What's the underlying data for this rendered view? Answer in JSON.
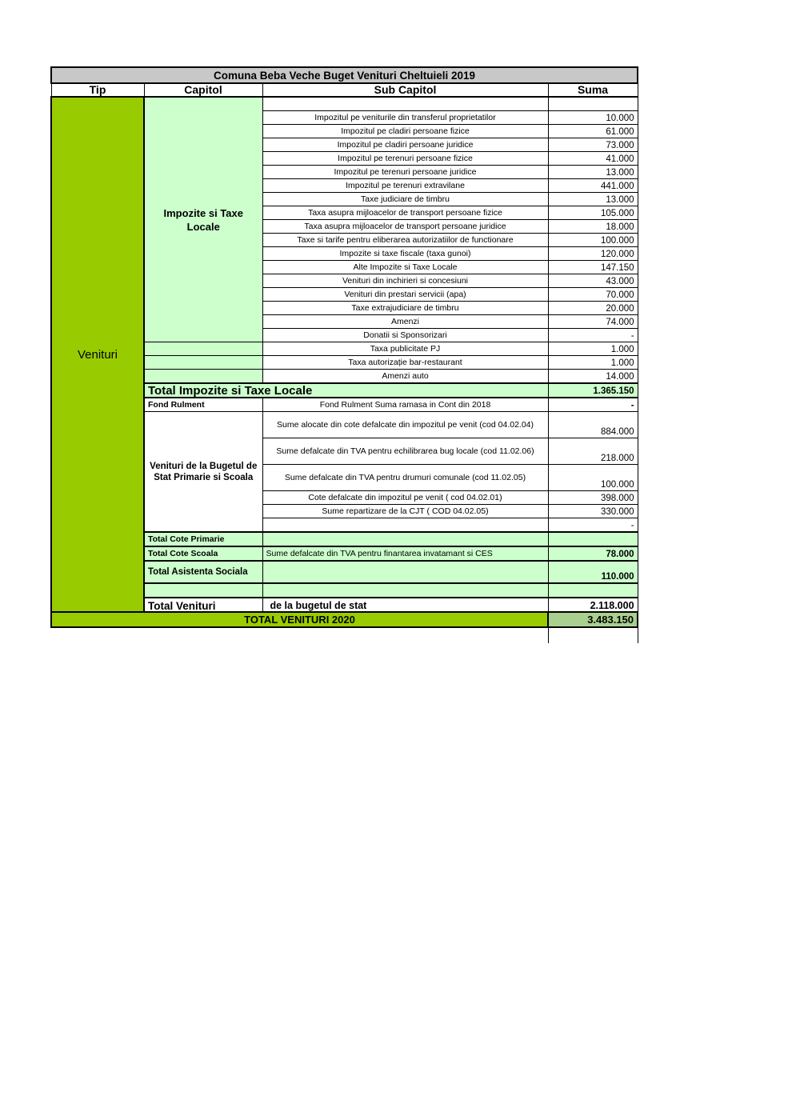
{
  "title": "Comuna Beba Veche  Buget Venituri Cheltuieli 2019",
  "headers": {
    "tip": "Tip",
    "capitol": "Capitol",
    "sub": "Sub Capitol",
    "suma": "Suma"
  },
  "tip": "Venituri",
  "capitol_impozite": "Impozite si Taxe Locale",
  "impozite_items": [
    {
      "name": "Impozitul pe veniturile din transferul proprietatilor",
      "value": "10.000"
    },
    {
      "name": "Impozitul pe cladiri persoane fizice",
      "value": "61.000"
    },
    {
      "name": "Impozitul pe cladiri persoane juridice",
      "value": "73.000"
    },
    {
      "name": "Impozitul pe terenuri persoane fizice",
      "value": "41.000"
    },
    {
      "name": "Impozitul pe terenuri persoane juridice",
      "value": "13.000"
    },
    {
      "name": "Impozitul pe terenuri extravilane",
      "value": "441.000"
    },
    {
      "name": "Taxe judiciare de timbru",
      "value": "13.000"
    },
    {
      "name": "Taxa asupra mijloacelor de transport persoane fizice",
      "value": "105.000"
    },
    {
      "name": "Taxa asupra mijloacelor de transport persoane juridice",
      "value": "18.000"
    },
    {
      "name": "Taxe si tarife pentru eliberarea autorizatiilor de functionare",
      "value": "100.000"
    },
    {
      "name": "Impozite si taxe fiscale (taxa gunoi)",
      "value": "120.000"
    },
    {
      "name": "Alte Impozite si Taxe Locale",
      "value": "147.150"
    },
    {
      "name": "Venituri din inchirieri si concesiuni",
      "value": "43.000"
    },
    {
      "name": "Venituri din prestari servicii (apa)",
      "value": "70.000"
    },
    {
      "name": "Taxe extrajudiciare de timbru",
      "value": "20.000"
    },
    {
      "name": "Amenzi",
      "value": "74.000"
    },
    {
      "name": "Donatii si Sponsorizari",
      "value": "-"
    }
  ],
  "extra_items": [
    {
      "name": "Taxa publicitate PJ",
      "value": "1.000"
    },
    {
      "name": "Taxa autorizație bar-restaurant",
      "value": "1.000"
    },
    {
      "name": "Amenzi auto",
      "value": "14.000"
    }
  ],
  "total_impozite": {
    "label": "Total Impozite si Taxe Locale",
    "value": "1.365.150"
  },
  "fond": {
    "label": "Fond Rulment",
    "sub": "Fond Rulment Suma ramasa in Cont din 2018",
    "value": "-"
  },
  "capitol_stat": "Venituri de la Bugetul de Stat Primarie si Scoala",
  "stat_items": [
    {
      "name": "Sume alocate din cote defalcate din impozitul pe venit (cod 04.02.04)",
      "value": "884.000"
    },
    {
      "name": "Sume defalcate din TVA pentru echilibrarea bug  locale (cod 11.02.06)",
      "value": "218.000"
    },
    {
      "name": "Sume defalcate din TVA pentru drumuri comunale (cod 11.02.05)",
      "value": "100.000"
    },
    {
      "name": "Cote defalcate din impozitul pe venit  ( cod 04.02.01)",
      "value": "398.000"
    },
    {
      "name": "Sume repartizare de la CJT ( COD 04.02.05)",
      "value": "330.000"
    },
    {
      "name": "",
      "value": "-"
    }
  ],
  "total_primarie": {
    "label": "Total Cote Primarie"
  },
  "total_scoala": {
    "label": "Total Cote Scoala",
    "sub": "Sume defalcate din TVA pentru finantarea invatamant  si CES",
    "value": "78.000"
  },
  "total_asistenta": {
    "label": "Total Asistenta Sociala",
    "value": "110.000"
  },
  "total_venituri": {
    "label": "Total Venituri",
    "sub": "de la bugetul de stat",
    "value": "2.118.000"
  },
  "grand_total": {
    "label": "TOTAL VENITURI 2020",
    "value": "3.483.150"
  }
}
